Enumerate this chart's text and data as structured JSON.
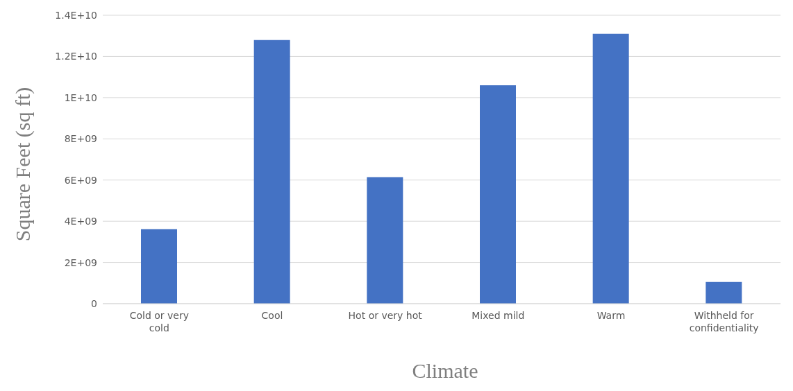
{
  "chart_data": {
    "type": "bar",
    "xlabel": "Climate",
    "ylabel": "Square Feet (sq ft)",
    "categories": [
      "Cold or very cold",
      "Cool",
      "Hot or very hot",
      "Mixed mild",
      "Warm",
      "Withheld for confidentiality"
    ],
    "values": [
      3620000000.0,
      12800000000.0,
      6140000000.0,
      10600000000.0,
      13100000000.0,
      1050000000.0
    ],
    "color": "#4472c4",
    "ylim": [
      0,
      14000000000.0
    ],
    "yticks": [
      0,
      {
        "value": 2000000000.0,
        "label": "2E+09"
      },
      {
        "value": 4000000000.0,
        "label": "4E+09"
      },
      {
        "value": 6000000000.0,
        "label": "6E+09"
      },
      {
        "value": 8000000000.0,
        "label": "8E+09"
      },
      {
        "value": 10000000000.0,
        "label": "1E+10"
      },
      {
        "value": 12000000000.0,
        "label": "1.2E+10"
      },
      {
        "value": 14000000000.0,
        "label": "1.4E+10"
      }
    ],
    "grid": "y"
  }
}
